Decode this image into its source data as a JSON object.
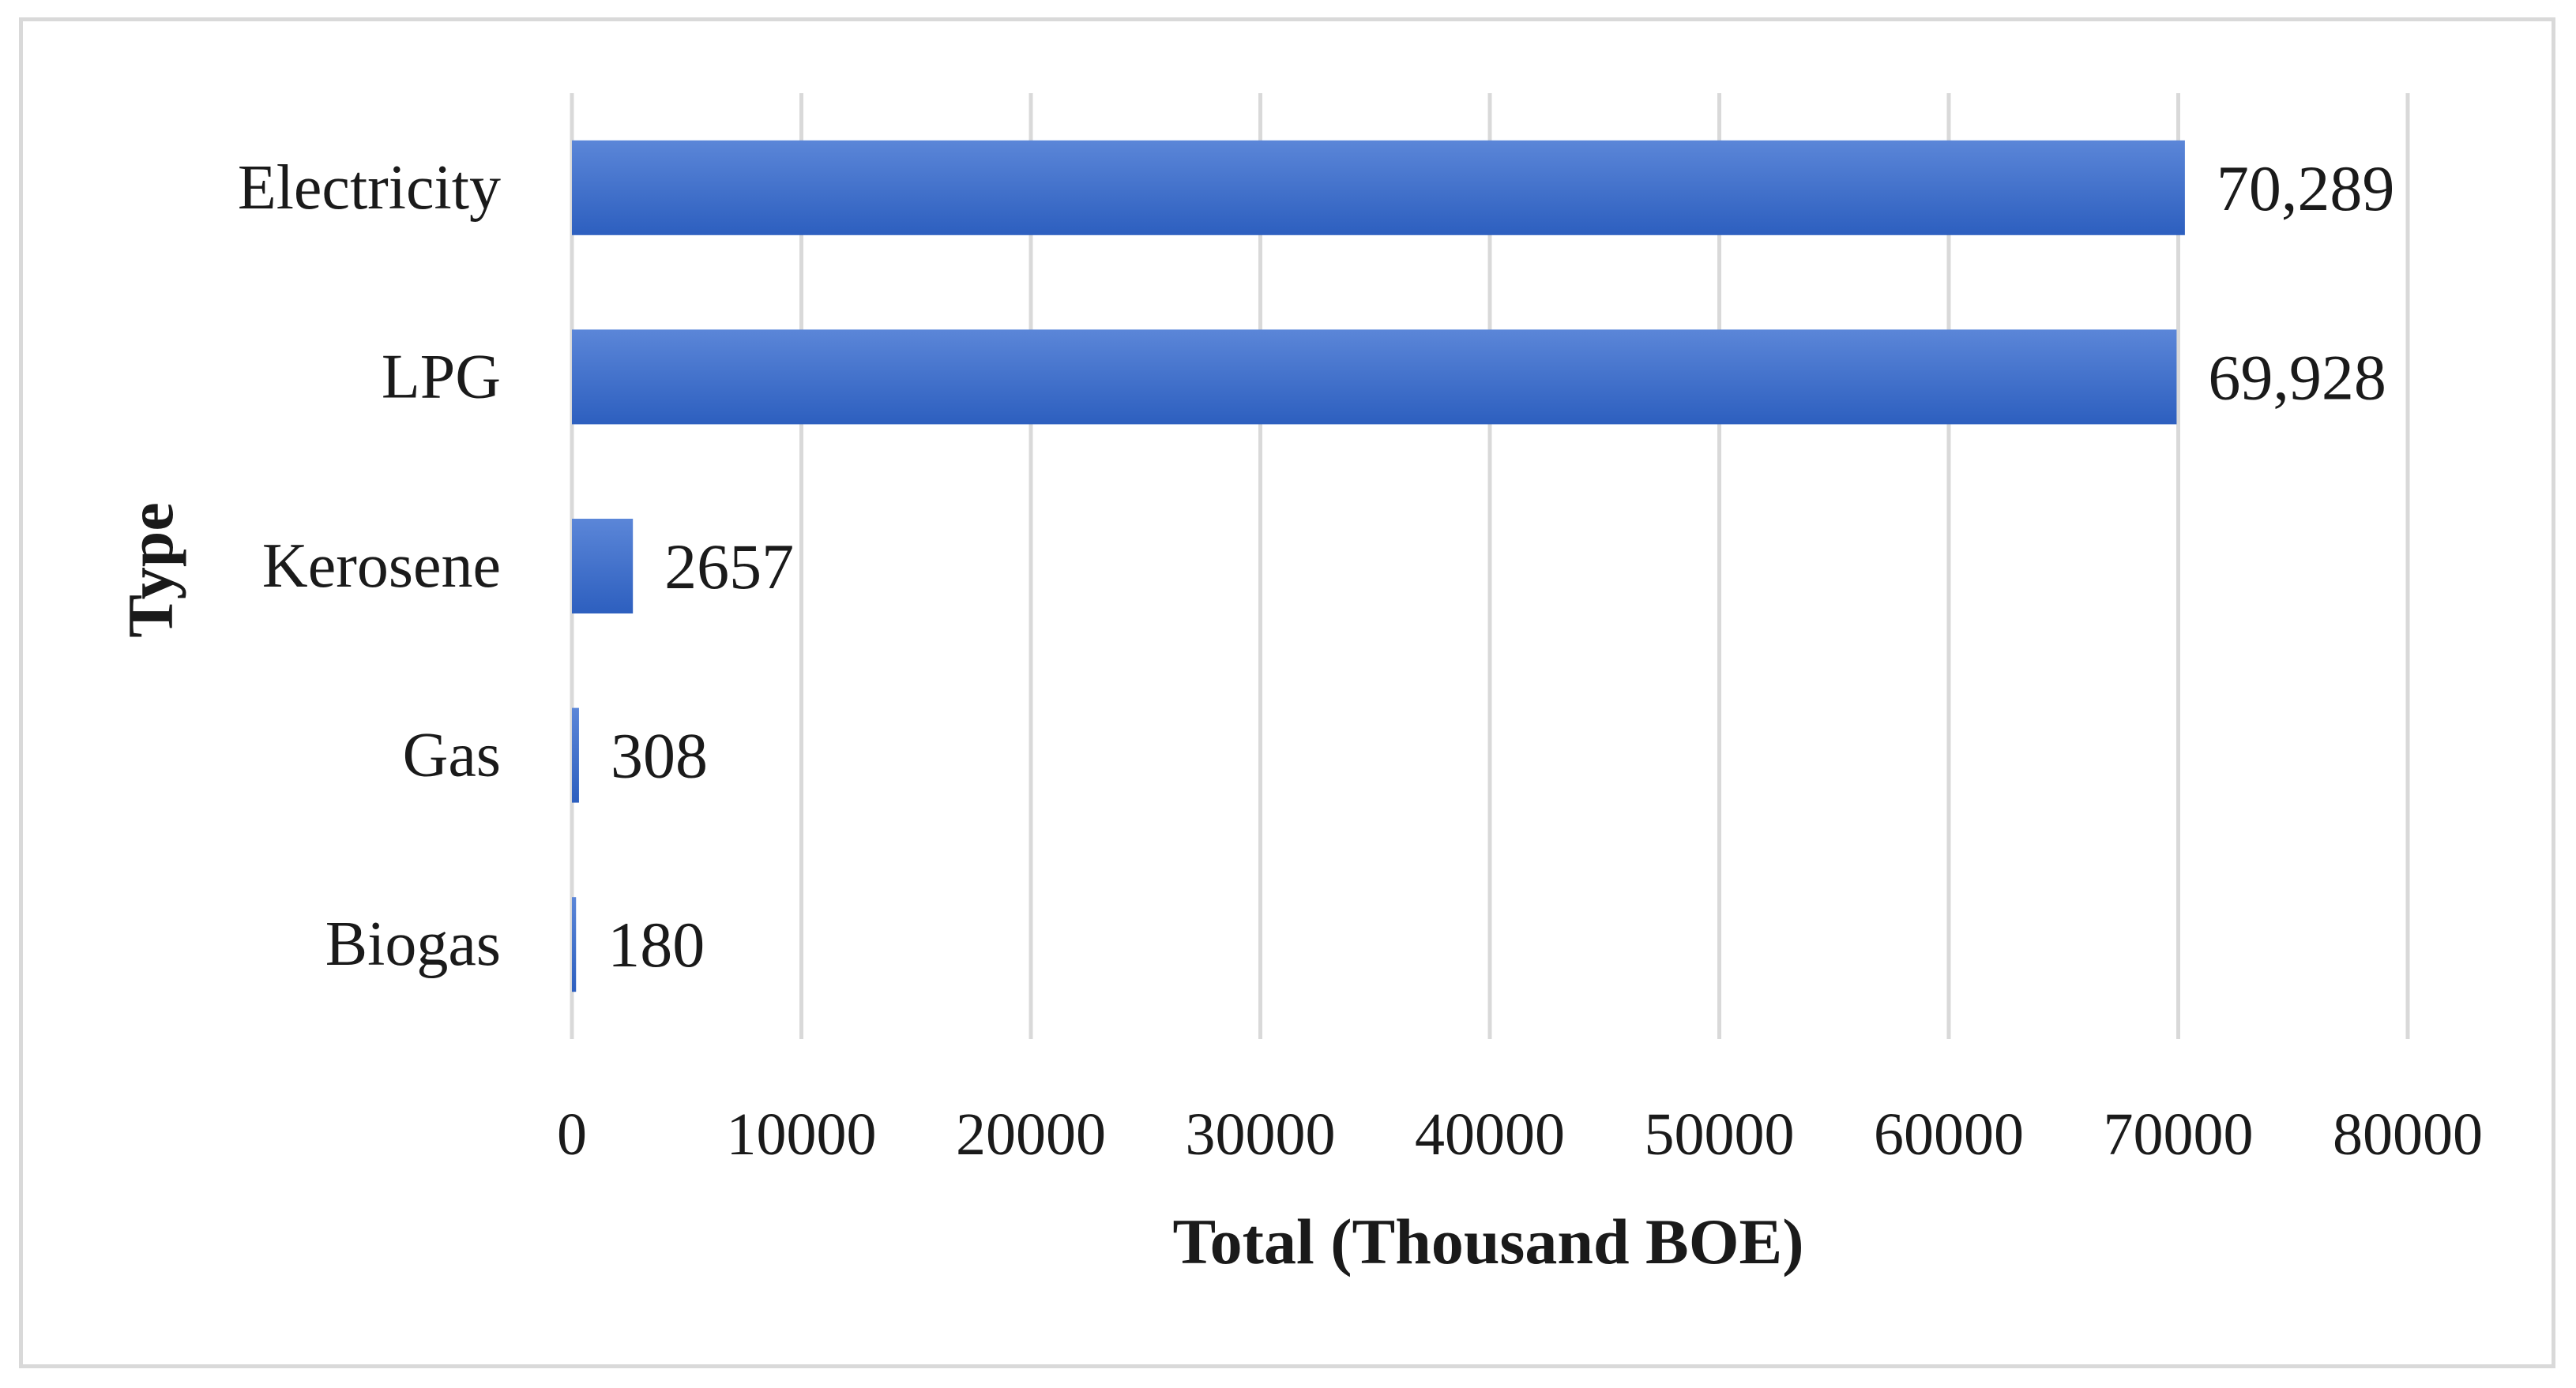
{
  "chart_data": {
    "type": "bar",
    "orientation": "horizontal",
    "title": "",
    "xlabel": "Total (Thousand BOE)",
    "ylabel": "Type",
    "categories": [
      "Electricity",
      "LPG",
      "Kerosene",
      "Gas",
      "Biogas"
    ],
    "values": [
      70289,
      69928,
      2657,
      308,
      180
    ],
    "data_labels": [
      "70,289",
      "69,928",
      "2657",
      "308",
      "180"
    ],
    "xlim": [
      0,
      80000
    ],
    "x_ticks": [
      0,
      10000,
      20000,
      30000,
      40000,
      50000,
      60000,
      70000,
      80000
    ],
    "x_tick_labels": [
      "0",
      "10000",
      "20000",
      "30000",
      "40000",
      "50000",
      "60000",
      "70000",
      "80000"
    ],
    "grid": true,
    "legend": "none",
    "colors": {
      "bar_top": "#5b86d8",
      "bar_bottom": "#2d5fbf",
      "grid": "#d9d9d9",
      "frame": "#d9d9d9",
      "text": "#1a1a1a"
    }
  }
}
